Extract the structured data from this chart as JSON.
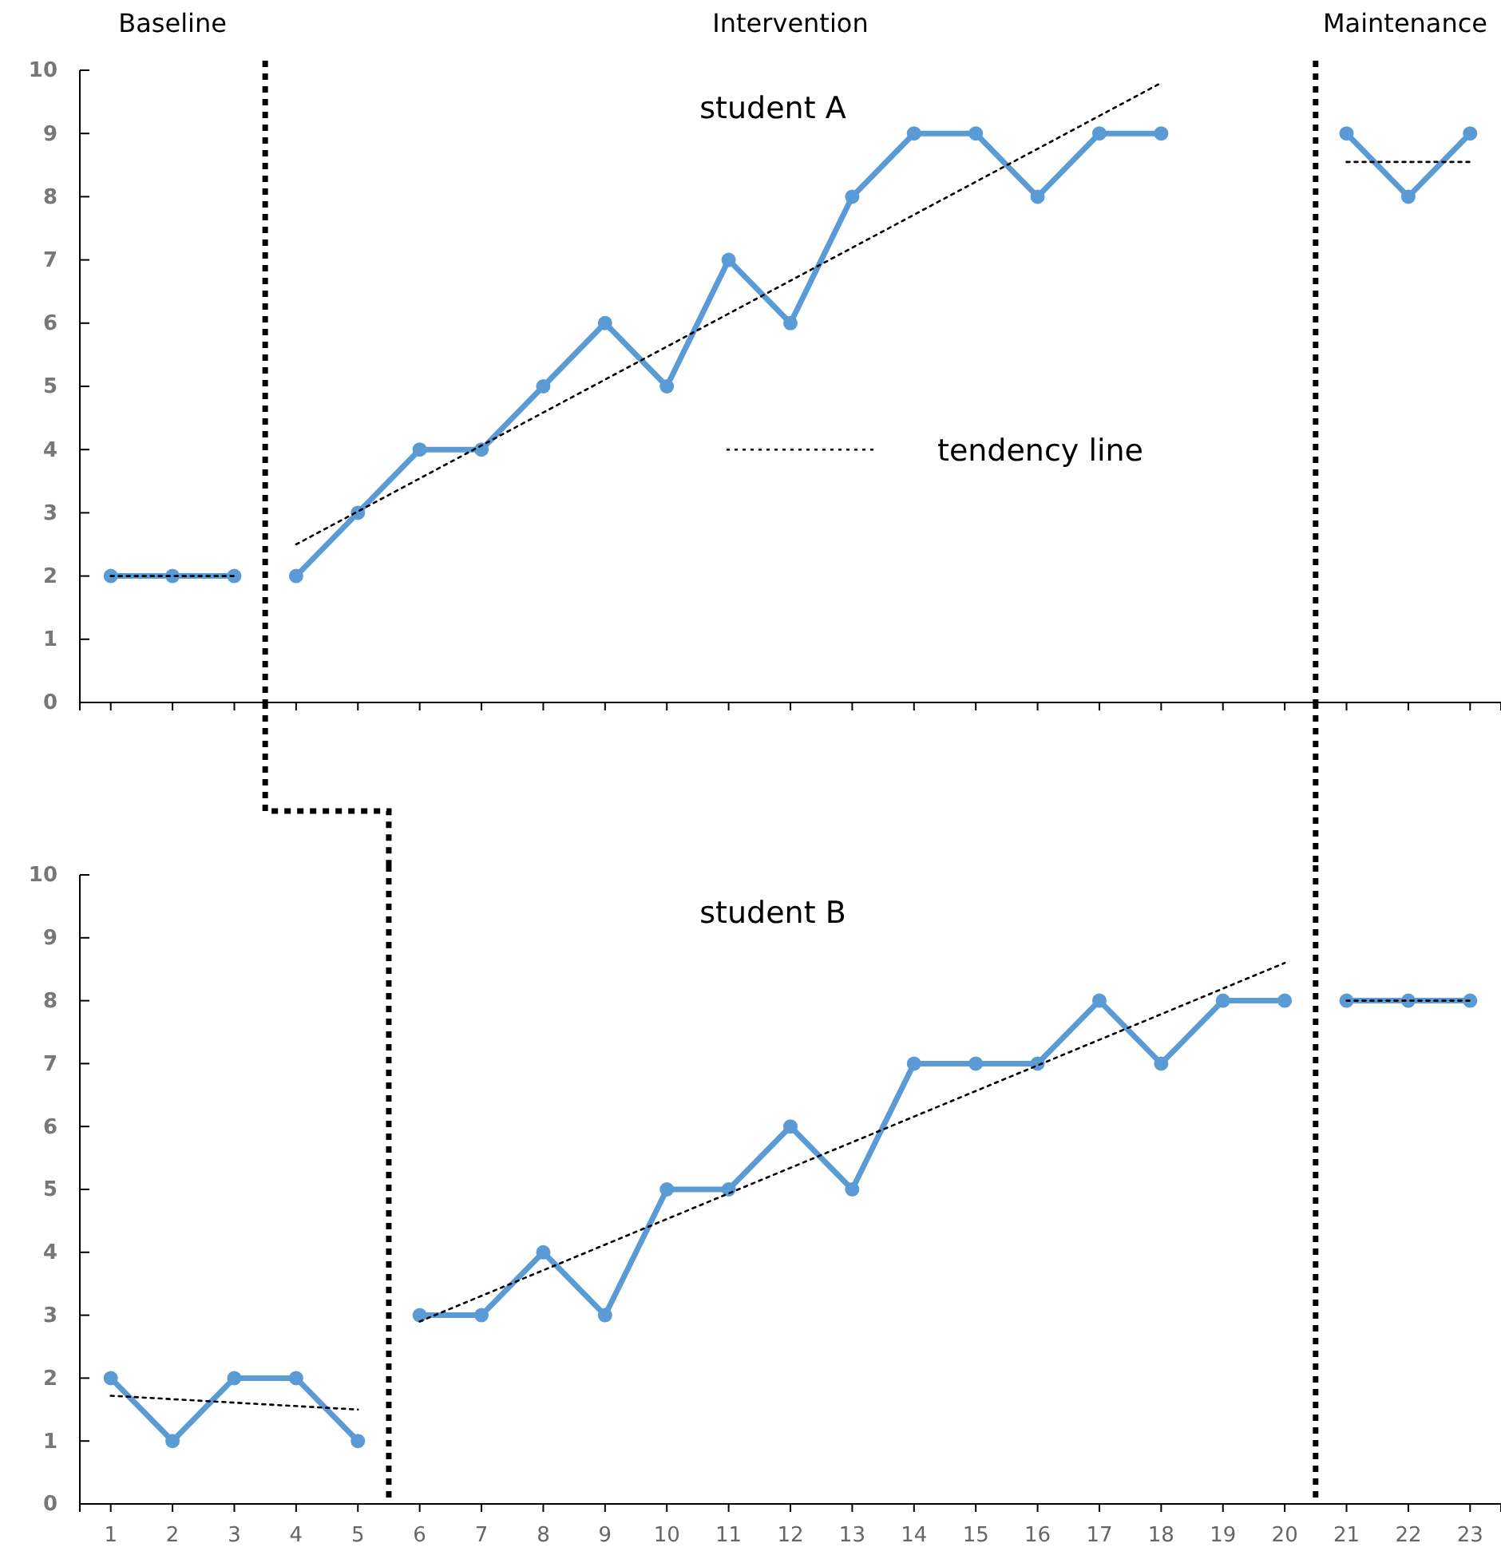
{
  "chart_data": [
    {
      "type": "line",
      "title": "student A",
      "annotations": [
        "Baseline",
        "Intervention",
        "Maintenance"
      ],
      "x": [
        1,
        2,
        3,
        4,
        5,
        6,
        7,
        8,
        9,
        10,
        11,
        12,
        13,
        14,
        15,
        16,
        17,
        18,
        19,
        20,
        21,
        22,
        23
      ],
      "series": [
        {
          "color": "#5b9bd5",
          "values": [
            2,
            2,
            2,
            null,
            null,
            null,
            null,
            null,
            null,
            null,
            null,
            null,
            null,
            null,
            null,
            null,
            null,
            null,
            null,
            null,
            null,
            null,
            null
          ]
        },
        {
          "color": "#5b9bd5",
          "values": [
            null,
            null,
            null,
            2,
            3,
            4,
            4,
            5,
            6,
            5,
            7,
            6,
            8,
            9,
            9,
            8,
            9,
            9,
            null,
            null,
            null,
            null,
            null
          ]
        },
        {
          "color": "#5b9bd5",
          "values": [
            null,
            null,
            null,
            null,
            null,
            null,
            null,
            null,
            null,
            null,
            null,
            null,
            null,
            null,
            null,
            null,
            null,
            null,
            null,
            null,
            9,
            8,
            9
          ]
        },
        {
          "type": "line",
          "color": "#000000",
          "marker": "none",
          "line_style": "dotted",
          "x": [
            1,
            3
          ],
          "values": [
            2,
            2
          ]
        },
        {
          "type": "line",
          "name": "tendency line",
          "color": "#000000",
          "marker": "none",
          "line_style": "dotted",
          "x": [
            4,
            18
          ],
          "values": [
            2.5,
            9.8
          ]
        },
        {
          "type": "line",
          "color": "#000000",
          "marker": "none",
          "line_style": "dotted",
          "x": [
            21,
            23
          ],
          "values": [
            8.55,
            8.55
          ]
        }
      ],
      "xlim": [
        0.5,
        23.5
      ],
      "xticks": [
        1,
        2,
        3,
        4,
        5,
        6,
        7,
        8,
        9,
        10,
        11,
        12,
        13,
        14,
        15,
        16,
        17,
        18,
        19,
        20,
        21,
        22,
        23
      ],
      "ylim": [
        0,
        10
      ],
      "yticks": [
        0,
        1,
        2,
        3,
        4,
        5,
        6,
        7,
        8,
        9,
        10
      ],
      "tick_labels": "y",
      "marker": "circle",
      "legend": "center",
      "ref_lines": [
        {
          "axis": "x",
          "value": 3.5,
          "color": "#000000",
          "line_style": "dotted"
        },
        {
          "axis": "x",
          "value": 20.5,
          "color": "#000000",
          "line_style": "dotted"
        }
      ]
    },
    {
      "type": "line",
      "title": "student B",
      "x": [
        1,
        2,
        3,
        4,
        5,
        6,
        7,
        8,
        9,
        10,
        11,
        12,
        13,
        14,
        15,
        16,
        17,
        18,
        19,
        20,
        21,
        22,
        23
      ],
      "series": [
        {
          "color": "#5b9bd5",
          "values": [
            2,
            1,
            2,
            2,
            1,
            null,
            null,
            null,
            null,
            null,
            null,
            null,
            null,
            null,
            null,
            null,
            null,
            null,
            null,
            null,
            null,
            null,
            null
          ]
        },
        {
          "color": "#5b9bd5",
          "values": [
            null,
            null,
            null,
            null,
            null,
            3,
            3,
            4,
            3,
            5,
            5,
            6,
            5,
            7,
            7,
            7,
            8,
            7,
            8,
            8,
            null,
            null,
            null
          ]
        },
        {
          "color": "#5b9bd5",
          "values": [
            null,
            null,
            null,
            null,
            null,
            null,
            null,
            null,
            null,
            null,
            null,
            null,
            null,
            null,
            null,
            null,
            null,
            null,
            null,
            null,
            8,
            8,
            8
          ]
        },
        {
          "type": "line",
          "color": "#000000",
          "marker": "none",
          "line_style": "dotted",
          "x": [
            1,
            5
          ],
          "values": [
            1.72,
            1.5
          ]
        },
        {
          "type": "line",
          "color": "#000000",
          "marker": "none",
          "line_style": "dotted",
          "x": [
            6,
            20
          ],
          "values": [
            2.9,
            8.6
          ]
        },
        {
          "type": "line",
          "color": "#000000",
          "marker": "none",
          "line_style": "dotted",
          "x": [
            21,
            23
          ],
          "values": [
            8,
            8
          ]
        }
      ],
      "xlim": [
        0.5,
        23.5
      ],
      "xticks": [
        1,
        2,
        3,
        4,
        5,
        6,
        7,
        8,
        9,
        10,
        11,
        12,
        13,
        14,
        15,
        16,
        17,
        18,
        19,
        20,
        21,
        22,
        23
      ],
      "ylim": [
        0,
        10
      ],
      "yticks": [
        0,
        1,
        2,
        3,
        4,
        5,
        6,
        7,
        8,
        9,
        10
      ],
      "marker": "circle",
      "ref_lines": [
        {
          "axis": "x",
          "value": 5.5,
          "color": "#000000",
          "line_style": "dotted"
        },
        {
          "axis": "x",
          "value": 20.5,
          "color": "#000000",
          "line_style": "dotted"
        }
      ]
    }
  ]
}
